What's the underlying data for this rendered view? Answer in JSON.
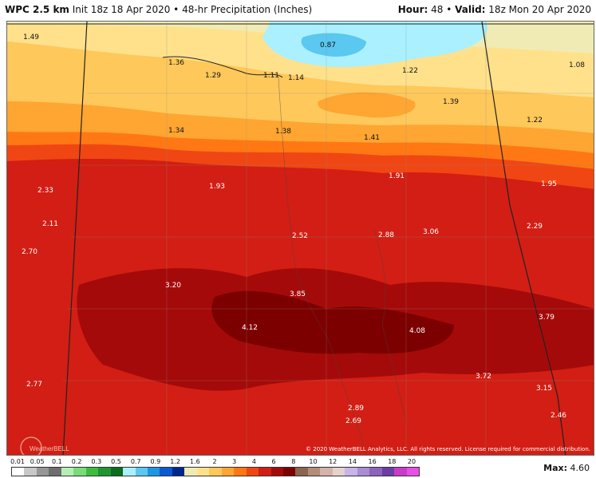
{
  "header": {
    "title": "WPC 2.5 km",
    "init": "Init 18z 18 Apr 2020",
    "product": "48-hr Precipitation (Inches)",
    "hour_label": "Hour:",
    "hour_value": "48",
    "valid_label": "Valid:",
    "valid_value": "18z Mon 20 Apr 2020"
  },
  "map": {
    "type": "precipitation-map",
    "region": "Mississippi / Alabama",
    "labels": [
      {
        "text": "1.49",
        "tone": "dark"
      },
      {
        "text": "1.36",
        "tone": "dark"
      },
      {
        "text": "1.29",
        "tone": "dark"
      },
      {
        "text": "1.11",
        "tone": "dark"
      },
      {
        "text": "1.14",
        "tone": "dark"
      },
      {
        "text": "0.87",
        "tone": "dark"
      },
      {
        "text": "1.22",
        "tone": "dark"
      },
      {
        "text": "1.08",
        "tone": "dark"
      },
      {
        "text": "1.39",
        "tone": "dark"
      },
      {
        "text": "1.22",
        "tone": "dark"
      },
      {
        "text": "1.34",
        "tone": "dark"
      },
      {
        "text": "1.38",
        "tone": "dark"
      },
      {
        "text": "1.41",
        "tone": "dark"
      },
      {
        "text": "1.91",
        "tone": "light"
      },
      {
        "text": "2.33",
        "tone": "light"
      },
      {
        "text": "1.93",
        "tone": "light"
      },
      {
        "text": "1.95",
        "tone": "light"
      },
      {
        "text": "2.11",
        "tone": "light"
      },
      {
        "text": "2.52",
        "tone": "light"
      },
      {
        "text": "2.88",
        "tone": "light"
      },
      {
        "text": "3.06",
        "tone": "light"
      },
      {
        "text": "2.29",
        "tone": "light"
      },
      {
        "text": "2.70",
        "tone": "light"
      },
      {
        "text": "3.20",
        "tone": "light"
      },
      {
        "text": "3.85",
        "tone": "light"
      },
      {
        "text": "4.12",
        "tone": "light"
      },
      {
        "text": "4.08",
        "tone": "light"
      },
      {
        "text": "3.79",
        "tone": "light"
      },
      {
        "text": "3.72",
        "tone": "light"
      },
      {
        "text": "2.77",
        "tone": "light"
      },
      {
        "text": "2.89",
        "tone": "light"
      },
      {
        "text": "2.69",
        "tone": "light"
      },
      {
        "text": "3.15",
        "tone": "light"
      },
      {
        "text": "2.46",
        "tone": "light"
      }
    ]
  },
  "logo_text": "WeatherBELL",
  "copyright": "© 2020 WeatherBELL Analytics, LLC. All rights reserved. License required for commercial distribution.",
  "legend": {
    "ticks": [
      "0.01",
      "0.05",
      "0.1",
      "0.2",
      "0.3",
      "0.5",
      "0.7",
      "0.9",
      "1.2",
      "1.6",
      "2",
      "3",
      "4",
      "6",
      "8",
      "10",
      "12",
      "14",
      "16",
      "18",
      "20"
    ],
    "colors": [
      "#ffffff",
      "#c8c8c8",
      "#969696",
      "#6e6e6e",
      "#b4f0b4",
      "#78dc78",
      "#3cbe3c",
      "#1e9632",
      "#0a6e1e",
      "#aaf0ff",
      "#5ac8f0",
      "#1e96e6",
      "#0a5ad2",
      "#00288c",
      "#f0ebb4",
      "#ffe18c",
      "#ffc85a",
      "#ffa532",
      "#ff7814",
      "#f04614",
      "#d21e14",
      "#a50a0a",
      "#7d0000",
      "#8c6450",
      "#b48c78",
      "#d2b4aa",
      "#e6d2cd",
      "#c8b4e6",
      "#aa8cd2",
      "#8c64be",
      "#6e3ca5",
      "#c83cc8",
      "#e650e6"
    ],
    "max_label": "Max:",
    "max_value": "4.60"
  }
}
